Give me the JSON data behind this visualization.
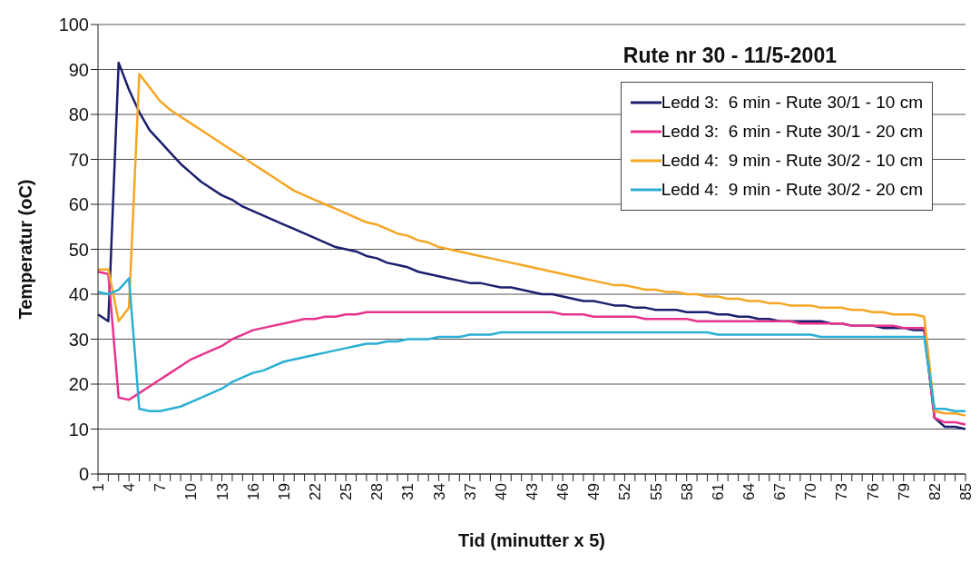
{
  "chart_data": {
    "type": "line",
    "title": "Rute nr 30 - 11/5-2001",
    "xlabel": "Tid (minutter x 5)",
    "ylabel": "Temperatur (oC)",
    "categories": [
      "1",
      null,
      null,
      "4",
      null,
      null,
      "7",
      null,
      null,
      "10",
      null,
      null,
      "13",
      null,
      null,
      "16",
      null,
      null,
      "19",
      null,
      null,
      "22",
      null,
      null,
      "25",
      null,
      null,
      "28",
      null,
      null,
      "31",
      null,
      null,
      "34",
      null,
      null,
      "37",
      null,
      null,
      "40",
      null,
      null,
      "43",
      null,
      null,
      "46",
      null,
      null,
      "49",
      null,
      null,
      "52",
      null,
      null,
      "55",
      null,
      null,
      "58",
      null,
      null,
      "61",
      null,
      null,
      "64",
      null,
      null,
      "67",
      null,
      null,
      "70",
      null,
      null,
      "73",
      null,
      null,
      "76",
      null,
      null,
      "79",
      null,
      null,
      "82",
      null,
      null,
      "85"
    ],
    "series": [
      {
        "name": "Ledd 3:  6 min - Rute 30/1 - 10 cm",
        "color": "#1a1f6e",
        "values": [
          35.5,
          34,
          91.5,
          85.5,
          80.5,
          76.5,
          74,
          71.5,
          69,
          67,
          65,
          63.5,
          62,
          61,
          59.5,
          58.5,
          57.5,
          56.5,
          55.5,
          54.5,
          53.5,
          52.5,
          51.5,
          50.5,
          50,
          49.5,
          48.5,
          48,
          47,
          46.5,
          46,
          45,
          44.5,
          44,
          43.5,
          43,
          42.5,
          42.5,
          42,
          41.5,
          41.5,
          41,
          40.5,
          40,
          40,
          39.5,
          39,
          38.5,
          38.5,
          38,
          37.5,
          37.5,
          37,
          37,
          36.5,
          36.5,
          36.5,
          36,
          36,
          36,
          35.5,
          35.5,
          35,
          35,
          34.5,
          34.5,
          34,
          34,
          34,
          34,
          34,
          33.5,
          33.5,
          33,
          33,
          33,
          32.5,
          32.5,
          32.5,
          32,
          32,
          12.5,
          10.5,
          10.5,
          10
        ]
      },
      {
        "name": "Ledd 3:  6 min - Rute 30/1 - 20 cm",
        "color": "#e8338c",
        "values": [
          45,
          44.5,
          17,
          16.5,
          18,
          19.5,
          21,
          22.5,
          24,
          25.5,
          26.5,
          27.5,
          28.5,
          30,
          31,
          32,
          32.5,
          33,
          33.5,
          34,
          34.5,
          34.5,
          35,
          35,
          35.5,
          35.5,
          36,
          36,
          36,
          36,
          36,
          36,
          36,
          36,
          36,
          36,
          36,
          36,
          36,
          36,
          36,
          36,
          36,
          36,
          36,
          35.5,
          35.5,
          35.5,
          35,
          35,
          35,
          35,
          35,
          34.5,
          34.5,
          34.5,
          34.5,
          34.5,
          34,
          34,
          34,
          34,
          34,
          34,
          34,
          34,
          34,
          34,
          33.5,
          33.5,
          33.5,
          33.5,
          33.5,
          33,
          33,
          33,
          33,
          33,
          32.5,
          32.5,
          32.5,
          12.5,
          11.5,
          11.5,
          11
        ]
      },
      {
        "name": "Ledd 4:  9 min - Rute 30/2 - 10 cm",
        "color": "#f5a623",
        "values": [
          45.5,
          45.5,
          34,
          37,
          89,
          86,
          83,
          81,
          79.5,
          78,
          76.5,
          75,
          73.5,
          72,
          70.5,
          69,
          67.5,
          66,
          64.5,
          63,
          62,
          61,
          60,
          59,
          58,
          57,
          56,
          55.5,
          54.5,
          53.5,
          53,
          52,
          51.5,
          50.5,
          50,
          49.5,
          49,
          48.5,
          48,
          47.5,
          47,
          46.5,
          46,
          45.5,
          45,
          44.5,
          44,
          43.5,
          43,
          42.5,
          42,
          42,
          41.5,
          41,
          41,
          40.5,
          40.5,
          40,
          40,
          39.5,
          39.5,
          39,
          39,
          38.5,
          38.5,
          38,
          38,
          37.5,
          37.5,
          37.5,
          37,
          37,
          37,
          36.5,
          36.5,
          36,
          36,
          35.5,
          35.5,
          35.5,
          35,
          14,
          13.5,
          13.5,
          13
        ]
      },
      {
        "name": "Ledd 4:  9 min - Rute 30/2 - 20 cm",
        "color": "#29afd4",
        "values": [
          40.5,
          40,
          41,
          43.5,
          14.5,
          14,
          14,
          14.5,
          15,
          16,
          17,
          18,
          19,
          20.5,
          21.5,
          22.5,
          23,
          24,
          25,
          25.5,
          26,
          26.5,
          27,
          27.5,
          28,
          28.5,
          29,
          29,
          29.5,
          29.5,
          30,
          30,
          30,
          30.5,
          30.5,
          30.5,
          31,
          31,
          31,
          31.5,
          31.5,
          31.5,
          31.5,
          31.5,
          31.5,
          31.5,
          31.5,
          31.5,
          31.5,
          31.5,
          31.5,
          31.5,
          31.5,
          31.5,
          31.5,
          31.5,
          31.5,
          31.5,
          31.5,
          31.5,
          31,
          31,
          31,
          31,
          31,
          31,
          31,
          31,
          31,
          31,
          30.5,
          30.5,
          30.5,
          30.5,
          30.5,
          30.5,
          30.5,
          30.5,
          30.5,
          30.5,
          30.5,
          14.5,
          14.5,
          14,
          14
        ]
      }
    ],
    "ylim": [
      0,
      100
    ],
    "yticks": [
      0,
      10,
      20,
      30,
      40,
      50,
      60,
      70,
      80,
      90,
      100
    ],
    "grid": "y",
    "legend": "top right",
    "line_style": "solid"
  }
}
